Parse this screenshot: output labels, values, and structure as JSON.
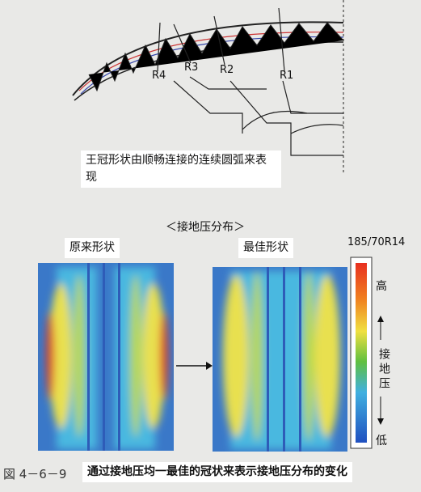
{
  "diagram": {
    "labels": [
      "R4",
      "R3",
      "R2",
      "R1"
    ],
    "caption_box": "王冠形状由顺畅连接的连续圆弧来表现"
  },
  "pressure": {
    "heading": "＜接地压分布＞",
    "panels": [
      "原来形状",
      "最佳形状"
    ],
    "tire_size": "185/70R14",
    "scale": {
      "high": "高",
      "label": "接地压",
      "low": "低"
    }
  },
  "figure": {
    "number": "図 4－6－9",
    "caption": "通过接地压均一最佳的冠状来表示接地压分布的变化"
  }
}
